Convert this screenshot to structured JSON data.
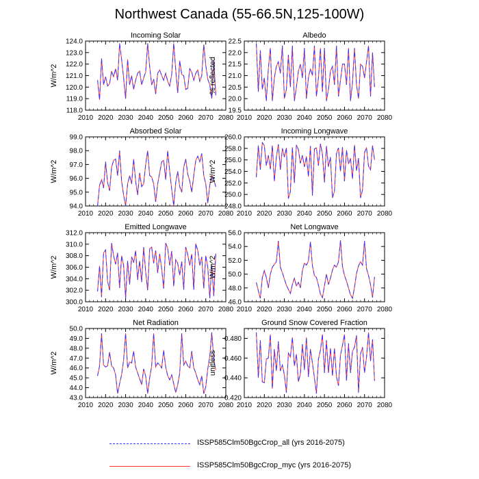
{
  "title": "Northwest Canada (55-66.5N,125-100W)",
  "colors": {
    "series_all": "#3333ff",
    "series_myc": "#ff3333"
  },
  "chart_data": [
    {
      "type": "line",
      "title": "Incoming Solar",
      "ylabel": "W/m^2",
      "xlim": [
        2010,
        2080
      ],
      "xticks": [
        2010,
        2020,
        2030,
        2040,
        2050,
        2060,
        2070,
        2080
      ],
      "ylim": [
        118.0,
        124.0
      ],
      "yticks": [
        118.0,
        119.0,
        120.0,
        121.0,
        122.0,
        123.0,
        124.0
      ],
      "ytick_decimals": 1,
      "x_start": 2016,
      "values": [
        120.6,
        118.9,
        122.5,
        120.2,
        120.9,
        120.1,
        120.3,
        121.4,
        120.9,
        121.6,
        120.6,
        123.8,
        122.4,
        120.8,
        119.0,
        122.4,
        120.2,
        121.0,
        119.8,
        120.6,
        121.2,
        121.4,
        120.2,
        120.8,
        121.3,
        123.8,
        121.8,
        120.2,
        120.7,
        119.4,
        121.2,
        121.5,
        121.0,
        120.6,
        121.2,
        120.5,
        120.1,
        121.1,
        123.8,
        121.5,
        119.5,
        122.3,
        121.1,
        121.0,
        119.8,
        119.9,
        121.6,
        121.3,
        120.6,
        121.2,
        121.5,
        120.5,
        121.0,
        123.7,
        121.9,
        120.7,
        120.2,
        119.0,
        122.3,
        119.3
      ],
      "series": [
        {
          "name": "ISSP585Clm50BgcCrop_all (yrs 2016-2075)",
          "style": "dashed"
        },
        {
          "name": "ISSP585Clm50BgcCrop_myc (yrs 2016-2075)",
          "style": "solid"
        }
      ]
    },
    {
      "type": "line",
      "title": "Albedo",
      "ylabel": "% reflected",
      "xlim": [
        2010,
        2080
      ],
      "xticks": [
        2010,
        2020,
        2030,
        2040,
        2050,
        2060,
        2070,
        2080
      ],
      "ylim": [
        19.5,
        22.5
      ],
      "yticks": [
        19.5,
        20.0,
        20.5,
        21.0,
        21.5,
        22.0,
        22.5
      ],
      "ytick_decimals": 1,
      "x_start": 2016,
      "values": [
        22.4,
        20.3,
        22.1,
        20.4,
        20.9,
        19.9,
        21.3,
        22.2,
        19.9,
        20.9,
        21.4,
        21.6,
        21.1,
        22.3,
        20.0,
        20.4,
        21.9,
        20.5,
        22.3,
        19.9,
        20.5,
        21.2,
        21.5,
        20.9,
        22.2,
        20.0,
        20.9,
        21.3,
        21.0,
        22.3,
        20.1,
        20.9,
        22.2,
        20.3,
        22.2,
        19.9,
        20.4,
        21.2,
        21.4,
        20.6,
        22.3,
        20.1,
        20.8,
        21.5,
        21.5,
        20.6,
        22.2,
        19.9,
        20.7,
        22.2,
        20.6,
        20.0,
        21.5,
        21.4,
        20.9,
        21.6,
        22.3,
        20.1,
        22.0,
        20.5
      ],
      "series": [
        {
          "name": "ISSP585Clm50BgcCrop_all (yrs 2016-2075)",
          "style": "dashed"
        },
        {
          "name": "ISSP585Clm50BgcCrop_myc (yrs 2016-2075)",
          "style": "solid"
        }
      ]
    },
    {
      "type": "line",
      "title": "Absorbed Solar",
      "ylabel": "W/m^2",
      "xlim": [
        2010,
        2080
      ],
      "xticks": [
        2010,
        2020,
        2030,
        2040,
        2050,
        2060,
        2070,
        2080
      ],
      "ylim": [
        94.0,
        99.0
      ],
      "yticks": [
        94.0,
        95.0,
        96.0,
        97.0,
        98.0,
        99.0
      ],
      "ytick_decimals": 1,
      "x_start": 2016,
      "values": [
        94.0,
        95.5,
        95.9,
        95.3,
        97.2,
        95.7,
        95.1,
        96.8,
        97.3,
        97.4,
        96.2,
        98.0,
        95.8,
        94.8,
        94.0,
        95.6,
        96.2,
        95.6,
        97.4,
        95.8,
        94.8,
        96.4,
        95.4,
        95.6,
        97.0,
        98.0,
        96.2,
        96.1,
        95.6,
        94.3,
        95.6,
        96.4,
        97.2,
        97.3,
        95.9,
        98.0,
        96.5,
        95.2,
        94.0,
        95.7,
        96.5,
        95.4,
        95.0,
        96.8,
        97.4,
        96.3,
        95.8,
        95.0,
        96.2,
        97.3,
        97.6,
        97.2,
        97.8,
        96.2,
        95.6,
        94.2,
        95.5,
        96.2,
        95.9,
        95.4
      ],
      "series": [
        {
          "name": "ISSP585Clm50BgcCrop_all (yrs 2016-2075)",
          "style": "dashed"
        },
        {
          "name": "ISSP585Clm50BgcCrop_myc (yrs 2016-2075)",
          "style": "solid"
        }
      ]
    },
    {
      "type": "line",
      "title": "Incoming Longwave",
      "ylabel": "W/m^2",
      "xlim": [
        2010,
        2080
      ],
      "xticks": [
        2010,
        2020,
        2030,
        2040,
        2050,
        2060,
        2070,
        2080
      ],
      "ylim": [
        248.0,
        260.0
      ],
      "yticks": [
        248.0,
        250.0,
        252.0,
        254.0,
        256.0,
        258.0,
        260.0
      ],
      "ytick_decimals": 1,
      "x_start": 2016,
      "values": [
        253.0,
        258.5,
        254.3,
        259.0,
        258.5,
        255.0,
        256.8,
        254.4,
        258.5,
        252.3,
        256.5,
        258.7,
        254.3,
        258.0,
        256.5,
        258.1,
        249.3,
        250.5,
        258.2,
        252.0,
        258.6,
        257.8,
        255.4,
        256.8,
        254.8,
        256.6,
        253.1,
        258.4,
        249.8,
        257.9,
        258.1,
        255.0,
        258.8,
        257.0,
        252.1,
        258.4,
        254.8,
        256.5,
        249.4,
        250.6,
        257.1,
        258.1,
        254.0,
        258.2,
        252.3,
        257.7,
        255.3,
        256.3,
        252.7,
        258.6,
        254.1,
        256.3,
        249.4,
        250.8,
        257.3,
        258.1,
        254.9,
        254.3,
        258.5,
        256.0
      ],
      "series": [
        {
          "name": "ISSP585Clm50BgcCrop_all (yrs 2016-2075)",
          "style": "dashed"
        },
        {
          "name": "ISSP585Clm50BgcCrop_myc (yrs 2016-2075)",
          "style": "solid"
        }
      ]
    },
    {
      "type": "line",
      "title": "Emitted Longwave",
      "ylabel": "W/m^2",
      "xlim": [
        2010,
        2080
      ],
      "xticks": [
        2010,
        2020,
        2030,
        2040,
        2050,
        2060,
        2070,
        2080
      ],
      "ylim": [
        300.0,
        312.0
      ],
      "yticks": [
        300.0,
        302.0,
        304.0,
        306.0,
        308.0,
        310.0,
        312.0
      ],
      "ytick_decimals": 1,
      "x_start": 2016,
      "values": [
        301.8,
        306.2,
        300.8,
        308.5,
        309.0,
        303.6,
        302.0,
        310.2,
        308.0,
        306.5,
        308.5,
        302.4,
        308.0,
        306.3,
        300.6,
        307.1,
        303.0,
        307.8,
        306.8,
        308.9,
        303.8,
        307.1,
        303.4,
        309.5,
        305.2,
        302.0,
        309.2,
        309.5,
        306.7,
        308.9,
        305.0,
        308.3,
        305.7,
        302.3,
        310.2,
        309.3,
        306.3,
        308.8,
        302.7,
        307.3,
        306.7,
        304.6,
        307.0,
        302.1,
        309.5,
        308.2,
        306.3,
        308.3,
        302.1,
        310.1,
        308.9,
        306.3,
        307.8,
        302.3,
        308.0,
        306.0,
        300.6,
        306.4,
        301.0,
        308.4
      ],
      "series": [
        {
          "name": "ISSP585Clm50BgcCrop_all (yrs 2016-2075)",
          "style": "dashed"
        },
        {
          "name": "ISSP585Clm50BgcCrop_myc (yrs 2016-2075)",
          "style": "solid"
        }
      ]
    },
    {
      "type": "line",
      "title": "Net Longwave",
      "ylabel": "W/m^2",
      "xlim": [
        2010,
        2080
      ],
      "xticks": [
        2010,
        2020,
        2030,
        2040,
        2050,
        2060,
        2070,
        2080
      ],
      "ylim": [
        46.0,
        56.0
      ],
      "yticks": [
        46.0,
        48.0,
        50.0,
        52.0,
        54.0,
        56.0
      ],
      "ytick_decimals": 1,
      "x_start": 2016,
      "values": [
        48.8,
        47.6,
        46.5,
        49.5,
        50.5,
        49.5,
        48.0,
        50.0,
        51.0,
        51.4,
        51.8,
        54.8,
        51.0,
        50.2,
        49.3,
        48.4,
        47.8,
        47.2,
        48.5,
        49.4,
        48.3,
        48.8,
        48.0,
        50.5,
        51.6,
        51.3,
        51.9,
        54.7,
        51.2,
        49.8,
        49.5,
        48.4,
        47.1,
        46.6,
        48.3,
        50.0,
        48.5,
        49.4,
        50.6,
        51.3,
        51.0,
        51.8,
        54.9,
        51.1,
        49.8,
        49.0,
        48.0,
        47.0,
        46.5,
        48.1,
        50.1,
        51.2,
        51.8,
        51.3,
        54.8,
        50.8,
        49.8,
        48.5,
        46.6,
        49.6
      ],
      "series": [
        {
          "name": "ISSP585Clm50BgcCrop_all (yrs 2016-2075)",
          "style": "dashed"
        },
        {
          "name": "ISSP585Clm50BgcCrop_myc (yrs 2016-2075)",
          "style": "solid"
        }
      ]
    },
    {
      "type": "line",
      "title": "Net Radiation",
      "ylabel": "W/m^2",
      "xlim": [
        2010,
        2080
      ],
      "xticks": [
        2010,
        2020,
        2030,
        2040,
        2050,
        2060,
        2070,
        2080
      ],
      "ylim": [
        43.0,
        50.0
      ],
      "yticks": [
        43.0,
        44.0,
        45.0,
        46.0,
        47.0,
        48.0,
        49.0,
        50.0
      ],
      "ytick_decimals": 1,
      "x_start": 2016,
      "values": [
        45.2,
        46.2,
        49.5,
        46.3,
        46.1,
        46.2,
        47.6,
        46.2,
        46.0,
        45.3,
        43.4,
        44.4,
        45.3,
        46.8,
        49.5,
        46.0,
        46.6,
        46.5,
        47.7,
        46.1,
        45.5,
        44.9,
        44.3,
        45.9,
        45.2,
        43.4,
        45.0,
        46.2,
        49.5,
        46.1,
        46.5,
        46.3,
        46.0,
        47.8,
        46.1,
        45.2,
        44.8,
        45.3,
        44.4,
        43.5,
        44.3,
        45.5,
        49.5,
        46.3,
        46.7,
        46.2,
        46.0,
        47.7,
        46.0,
        45.5,
        44.8,
        44.3,
        45.2,
        43.4,
        44.1,
        45.9,
        47.2,
        49.6,
        46.8,
        45.8
      ],
      "series": [
        {
          "name": "ISSP585Clm50BgcCrop_all (yrs 2016-2075)",
          "style": "dashed"
        },
        {
          "name": "ISSP585Clm50BgcCrop_myc (yrs 2016-2075)",
          "style": "solid"
        }
      ]
    },
    {
      "type": "line",
      "title": "Ground Snow Covered Fraction",
      "ylabel": "unitless",
      "xlim": [
        2010,
        2080
      ],
      "xticks": [
        2010,
        2020,
        2030,
        2040,
        2050,
        2060,
        2070,
        2080
      ],
      "ylim": [
        0.42,
        0.49
      ],
      "yticks": [
        0.42,
        0.44,
        0.46,
        0.48
      ],
      "ytick_decimals": 3,
      "x_start": 2016,
      "values": [
        0.486,
        0.44,
        0.478,
        0.436,
        0.435,
        0.459,
        0.46,
        0.484,
        0.429,
        0.469,
        0.447,
        0.477,
        0.447,
        0.453,
        0.443,
        0.425,
        0.465,
        0.461,
        0.481,
        0.452,
        0.464,
        0.436,
        0.444,
        0.474,
        0.448,
        0.481,
        0.441,
        0.469,
        0.455,
        0.44,
        0.424,
        0.459,
        0.468,
        0.484,
        0.445,
        0.478,
        0.445,
        0.47,
        0.442,
        0.47,
        0.441,
        0.432,
        0.463,
        0.473,
        0.484,
        0.437,
        0.475,
        0.445,
        0.467,
        0.471,
        0.483,
        0.425,
        0.464,
        0.471,
        0.445,
        0.461,
        0.486,
        0.457,
        0.479,
        0.437
      ],
      "series": [
        {
          "name": "ISSP585Clm50BgcCrop_all (yrs 2016-2075)",
          "style": "dashed"
        },
        {
          "name": "ISSP585Clm50BgcCrop_myc (yrs 2016-2075)",
          "style": "solid"
        }
      ]
    }
  ],
  "legend": [
    {
      "label": "ISSP585Clm50BgcCrop_all (yrs 2016-2075)",
      "style": "dashed",
      "color": "#3333ff"
    },
    {
      "label": "ISSP585Clm50BgcCrop_myc (yrs 2016-2075)",
      "style": "solid",
      "color": "#ff3333"
    }
  ]
}
